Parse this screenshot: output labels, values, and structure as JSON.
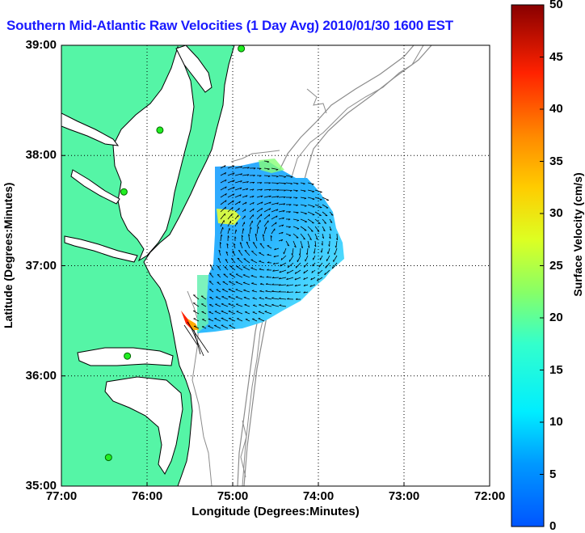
{
  "title": "Southern Mid-Atlantic Raw Velocities (1 Day Avg) 2010/01/30 1600 EST",
  "chart_data": {
    "type": "map",
    "xlabel": "Longitude (Degrees:Minutes)",
    "ylabel": "Latitude (Degrees:Minutes)",
    "x_ticks": [
      "77:00",
      "76:00",
      "75:00",
      "74:00",
      "73:00",
      "72:00"
    ],
    "y_ticks": [
      "39:00",
      "38:00",
      "37:00",
      "36:00",
      "35:00"
    ],
    "xlim": [
      -77,
      -72
    ],
    "ylim": [
      35,
      39
    ],
    "grid": true,
    "colorbar": {
      "label": "Surface Velocity (cm/s)",
      "range": [
        0,
        50
      ],
      "ticks": [
        0,
        5,
        10,
        15,
        20,
        25,
        30,
        35,
        40,
        45,
        50
      ],
      "colormap": "jet"
    },
    "land_color": "#55f5a6",
    "stations": [
      {
        "lon": -74.9,
        "lat": 38.97
      },
      {
        "lon": -75.85,
        "lat": 38.23
      },
      {
        "lon": -76.27,
        "lat": 37.67
      },
      {
        "lon": -76.23,
        "lat": 36.18
      },
      {
        "lon": -76.45,
        "lat": 35.26
      }
    ]
  }
}
